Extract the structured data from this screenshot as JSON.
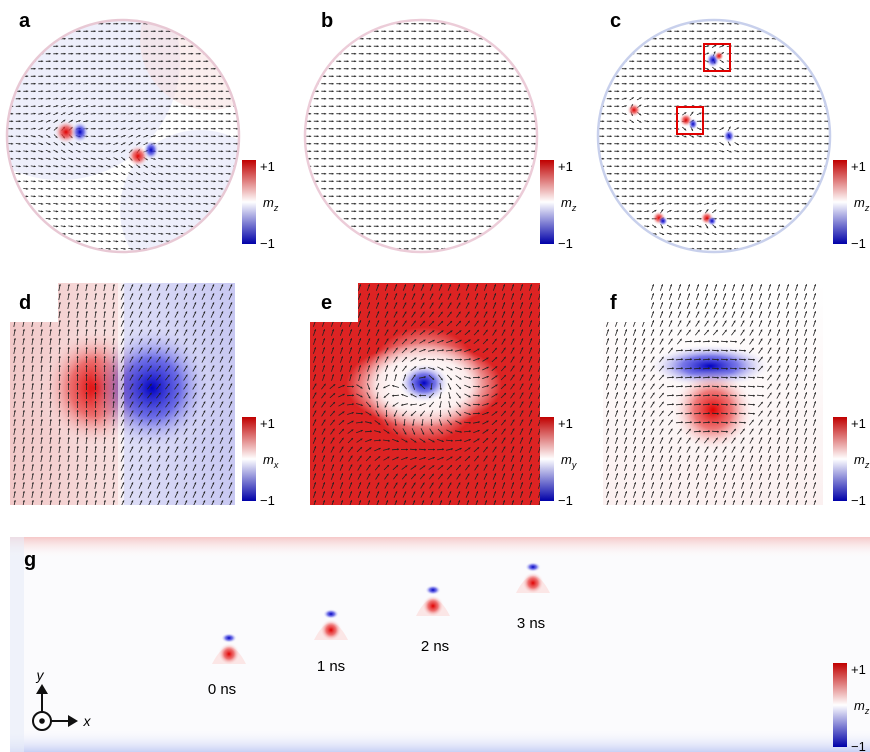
{
  "panels": [
    {
      "id": "a",
      "label": "a",
      "component": "z"
    },
    {
      "id": "b",
      "label": "b",
      "component": "z"
    },
    {
      "id": "c",
      "label": "c",
      "component": "z"
    },
    {
      "id": "d",
      "label": "d",
      "component": "x"
    },
    {
      "id": "e",
      "label": "e",
      "component": "y"
    },
    {
      "id": "f",
      "label": "f",
      "component": "z"
    },
    {
      "id": "g",
      "label": "g",
      "component": "z"
    }
  ],
  "colorbar": {
    "max_label": "+1",
    "min_label": "−1",
    "symbol": "m",
    "colors": [
      "#c00000",
      "#ffffff",
      "#0000a8"
    ]
  },
  "time_labels": [
    "0 ns",
    "1 ns",
    "2 ns",
    "3 ns"
  ],
  "axes": {
    "y_label": "y",
    "x_label": "x"
  },
  "accent": {
    "highlight_box": "#e00000",
    "arrow": "#222222"
  }
}
